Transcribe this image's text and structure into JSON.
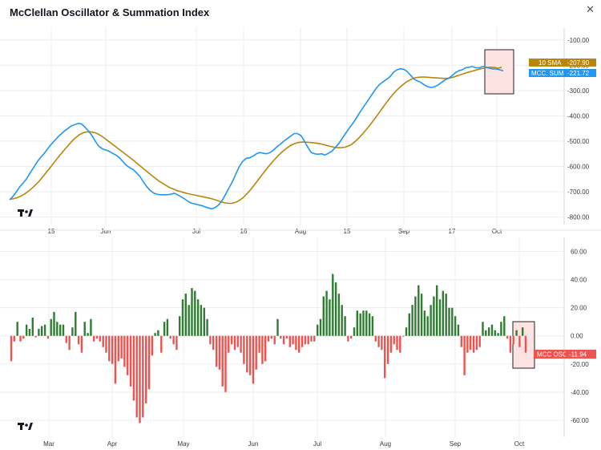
{
  "header": {
    "title": "McClellan Oscillator & Summation Index",
    "close_icon": "close-icon"
  },
  "colors": {
    "sum_line": "#2196f3",
    "sma_line": "#b8860b",
    "pos_bar": "#2e7d32",
    "neg_bar": "#ef5350",
    "osc_tag": "#ef5350",
    "highlight_fill": "#fde2e2",
    "grid": "#ececec"
  },
  "chart_data": [
    {
      "type": "line",
      "ylim": [
        -830,
        -50
      ],
      "yticks": [
        -100,
        -200,
        -300,
        -400,
        -500,
        -600,
        -700,
        -800
      ],
      "ytick_labels": [
        "-100.00",
        "-200.00",
        "-300.00",
        "-400.00",
        "-500.00",
        "-600.00",
        "-700.00",
        "-800.00"
      ],
      "xlabels": [
        "15",
        "Jun",
        "Jul",
        "16",
        "Aug",
        "15",
        "Sep",
        "17",
        "Oct"
      ],
      "series": [
        {
          "name": "MCC. SUM",
          "value_label": "-221.72",
          "values": [
            -732,
            -718,
            -700,
            -680,
            -665,
            -648,
            -625,
            -605,
            -583,
            -565,
            -550,
            -532,
            -515,
            -500,
            -485,
            -472,
            -460,
            -450,
            -440,
            -435,
            -430,
            -432,
            -445,
            -460,
            -478,
            -500,
            -520,
            -530,
            -535,
            -540,
            -548,
            -555,
            -565,
            -580,
            -595,
            -605,
            -612,
            -625,
            -640,
            -660,
            -680,
            -695,
            -705,
            -710,
            -712,
            -712,
            -712,
            -710,
            -706,
            -712,
            -720,
            -728,
            -738,
            -745,
            -748,
            -752,
            -755,
            -760,
            -764,
            -768,
            -762,
            -752,
            -735,
            -710,
            -685,
            -660,
            -630,
            -600,
            -580,
            -568,
            -566,
            -560,
            -550,
            -545,
            -548,
            -550,
            -545,
            -535,
            -522,
            -512,
            -500,
            -490,
            -480,
            -470,
            -470,
            -478,
            -500,
            -525,
            -545,
            -550,
            -552,
            -550,
            -555,
            -548,
            -540,
            -525,
            -510,
            -490,
            -470,
            -450,
            -432,
            -412,
            -390,
            -370,
            -350,
            -330,
            -310,
            -290,
            -275,
            -265,
            -255,
            -245,
            -228,
            -218,
            -214,
            -216,
            -225,
            -240,
            -255,
            -262,
            -268,
            -278,
            -285,
            -288,
            -285,
            -278,
            -268,
            -258,
            -252,
            -242,
            -230,
            -222,
            -218,
            -210,
            -208,
            -205,
            -210,
            -210,
            -205,
            -208,
            -212,
            -215,
            -215,
            -218,
            -221.72
          ]
        },
        {
          "name": "10 SMA",
          "value_label": "-207.90",
          "values": [
            -730,
            -728,
            -724,
            -718,
            -710,
            -700,
            -688,
            -675,
            -660,
            -643,
            -625,
            -607,
            -588,
            -570,
            -552,
            -535,
            -518,
            -502,
            -488,
            -476,
            -468,
            -464,
            -463,
            -465,
            -470,
            -478,
            -488,
            -499,
            -510,
            -521,
            -532,
            -543,
            -554,
            -565,
            -576,
            -588,
            -600,
            -612,
            -624,
            -636,
            -647,
            -658,
            -667,
            -676,
            -684,
            -690,
            -696,
            -700,
            -704,
            -708,
            -711,
            -714,
            -717,
            -720,
            -723,
            -726,
            -730,
            -735,
            -740,
            -744,
            -746,
            -746,
            -742,
            -735,
            -724,
            -710,
            -694,
            -676,
            -657,
            -638,
            -619,
            -601,
            -584,
            -568,
            -553,
            -540,
            -528,
            -518,
            -511,
            -506,
            -504,
            -504,
            -505,
            -506,
            -508,
            -510,
            -513,
            -517,
            -521,
            -524,
            -526,
            -526,
            -524,
            -519,
            -511,
            -499,
            -485,
            -469,
            -452,
            -434,
            -415,
            -395,
            -375,
            -355,
            -336,
            -318,
            -302,
            -288,
            -276,
            -265,
            -257,
            -251,
            -248,
            -247,
            -247,
            -248,
            -249,
            -250,
            -251,
            -252,
            -252,
            -250,
            -246,
            -241,
            -236,
            -231,
            -227,
            -223,
            -219,
            -215,
            -212,
            -209,
            -208,
            -209,
            -212,
            -207.9
          ]
        }
      ]
    },
    {
      "type": "bar",
      "ylim": [
        -72,
        70
      ],
      "yticks": [
        60,
        40,
        20,
        0,
        -20,
        -40,
        -60
      ],
      "ytick_labels": [
        "60.00",
        "40.00",
        "20.00",
        "0.00",
        "-20.00",
        "-40.00",
        "-60.00"
      ],
      "xlabels": [
        "Mar",
        "Apr",
        "May",
        "Jun",
        "Jul",
        "Aug",
        "Sep",
        "Oct"
      ],
      "series": [
        {
          "name": "MCC OSC",
          "value_label": "-11.94",
          "values": [
            -18,
            -4,
            10,
            -4,
            -2,
            8,
            5,
            13,
            -1,
            5,
            7,
            8,
            -2,
            12,
            17,
            10,
            8,
            8,
            -5,
            -10,
            6,
            17,
            -6,
            -12,
            10,
            2,
            12,
            -4,
            -2,
            -4,
            -8,
            -12,
            -18,
            -20,
            -34,
            -18,
            -16,
            -22,
            -28,
            -36,
            -46,
            -58,
            -62,
            -58,
            -48,
            -38,
            -14,
            2,
            4,
            -12,
            10,
            12,
            -2,
            -6,
            -10,
            14,
            26,
            30,
            22,
            34,
            32,
            26,
            22,
            20,
            12,
            -6,
            -10,
            -22,
            -24,
            -36,
            -40,
            -12,
            -6,
            -10,
            -8,
            -12,
            -20,
            -26,
            -28,
            -34,
            -24,
            -12,
            -20,
            -18,
            -4,
            -2,
            -6,
            12,
            -2,
            -6,
            -2,
            -8,
            -6,
            -10,
            -12,
            -8,
            -6,
            -6,
            -4,
            -4,
            8,
            12,
            28,
            32,
            26,
            44,
            38,
            30,
            22,
            14,
            -4,
            -2,
            6,
            18,
            16,
            18,
            18,
            16,
            14,
            -4,
            -8,
            -10,
            -30,
            -20,
            -12,
            -6,
            -10,
            -12,
            0,
            6,
            16,
            22,
            28,
            36,
            30,
            18,
            14,
            22,
            28,
            36,
            26,
            32,
            30,
            20,
            20,
            14,
            8,
            -8,
            -28,
            -12,
            -10,
            -12,
            -10,
            -8,
            10,
            4,
            6,
            8,
            4,
            2,
            10,
            14,
            -2,
            -12,
            -6,
            4,
            -8,
            6,
            -12
          ]
        }
      ]
    }
  ]
}
